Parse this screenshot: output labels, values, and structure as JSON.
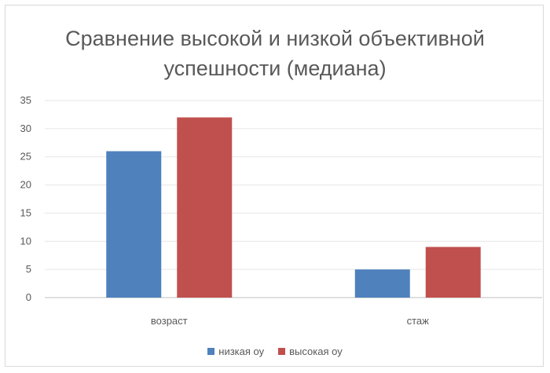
{
  "chart_data": {
    "type": "bar",
    "title_line1": "Сравнение высокой и низкой объективной",
    "title_line2": "успешности (медиана)",
    "categories": [
      "возраст",
      "стаж"
    ],
    "series": [
      {
        "name": "низкая оу",
        "values": [
          26,
          5
        ],
        "color": "#4f81bd"
      },
      {
        "name": "высокая оу",
        "values": [
          32,
          9
        ],
        "color": "#c0504d"
      }
    ],
    "ylim": [
      0,
      35
    ],
    "yticks": [
      0,
      5,
      10,
      15,
      20,
      25,
      30,
      35
    ],
    "grid": true,
    "legend_position": "bottom"
  }
}
